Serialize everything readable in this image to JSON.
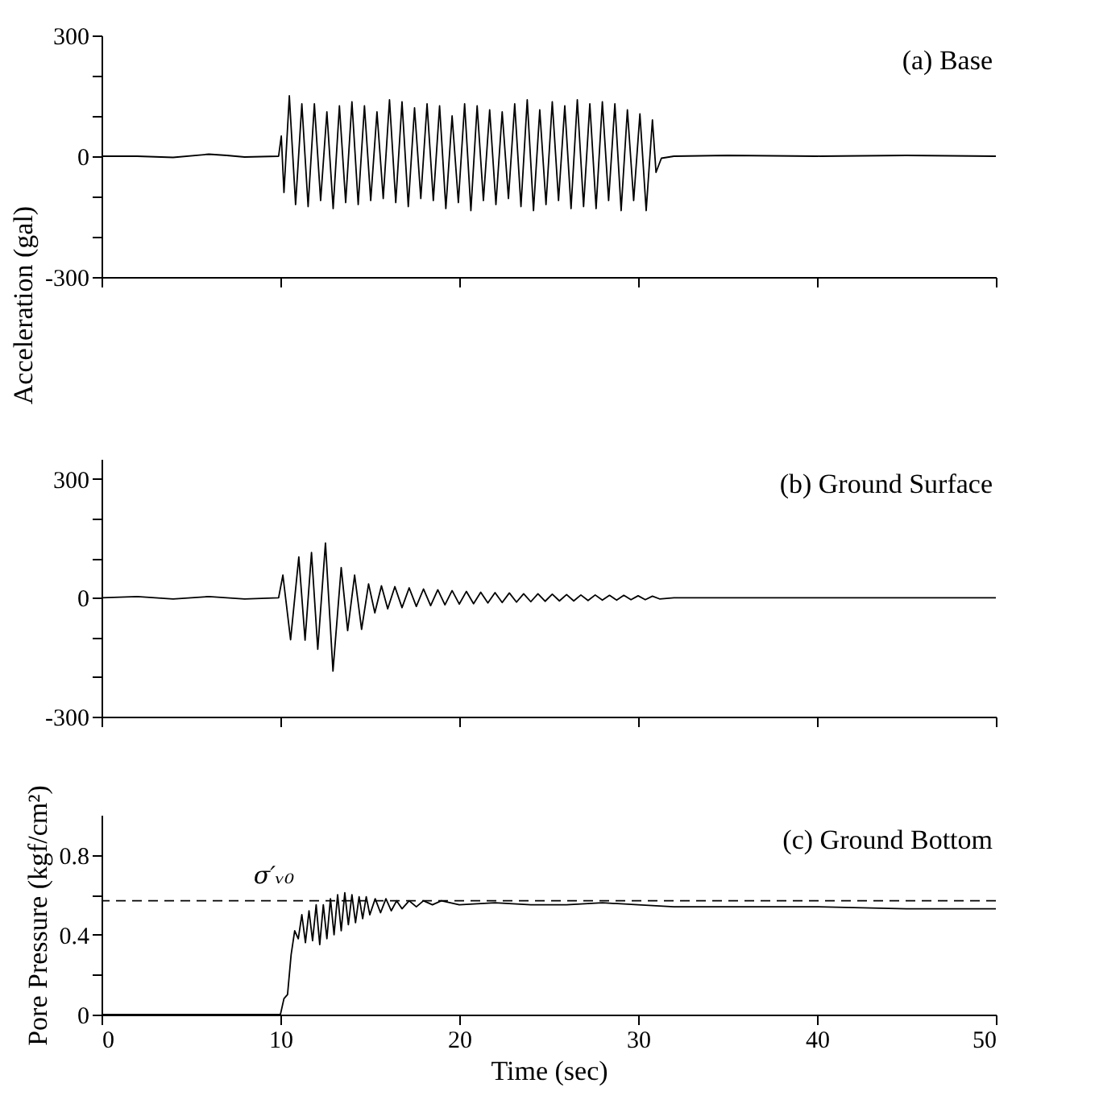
{
  "chart_data": [
    {
      "type": "line",
      "title": "(a) Base",
      "ylabel": "Acceleration (gal)",
      "xlim": [
        0,
        50
      ],
      "xticks": [
        0,
        10,
        20,
        30,
        40,
        50
      ],
      "ylim": [
        -300,
        300
      ],
      "yticks": [
        -300,
        {
          "value": -200,
          "label": null
        },
        {
          "value": -100,
          "label": null
        },
        0,
        {
          "value": 100,
          "label": null
        },
        {
          "value": 200,
          "label": null
        },
        300
      ],
      "tick_labels": "y",
      "grid": false,
      "series": [
        {
          "color": "#000000",
          "x": [
            0,
            2,
            4,
            6,
            7,
            8,
            9.9,
            10.05,
            10.2,
            10.5,
            10.85,
            11.2,
            11.55,
            11.9,
            12.25,
            12.6,
            12.95,
            13.3,
            13.65,
            14.0,
            14.35,
            14.7,
            15.05,
            15.4,
            15.75,
            16.1,
            16.45,
            16.8,
            17.15,
            17.5,
            17.85,
            18.2,
            18.55,
            18.9,
            19.25,
            19.6,
            19.95,
            20.3,
            20.65,
            21.0,
            21.35,
            21.7,
            22.05,
            22.4,
            22.75,
            23.1,
            23.45,
            23.8,
            24.15,
            24.5,
            24.85,
            25.2,
            25.55,
            25.9,
            26.25,
            26.6,
            26.95,
            27.3,
            27.65,
            28.0,
            28.35,
            28.7,
            29.05,
            29.4,
            29.75,
            30.1,
            30.45,
            30.8,
            31.0,
            31.3,
            32,
            35,
            40,
            45,
            50
          ],
          "values": [
            0,
            0,
            -3,
            5,
            2,
            -2,
            0,
            50,
            -90,
            150,
            -120,
            130,
            -125,
            130,
            -110,
            110,
            -130,
            125,
            -115,
            135,
            -120,
            125,
            -110,
            110,
            -105,
            140,
            -115,
            135,
            -125,
            120,
            -105,
            130,
            -110,
            125,
            -130,
            100,
            -115,
            130,
            -135,
            125,
            -110,
            115,
            -120,
            110,
            -105,
            130,
            -125,
            140,
            -135,
            115,
            -120,
            135,
            -110,
            125,
            -130,
            140,
            -125,
            130,
            -130,
            135,
            -110,
            130,
            -135,
            115,
            -110,
            105,
            -135,
            90,
            -40,
            -5,
            0,
            2,
            0,
            2,
            0
          ]
        }
      ]
    },
    {
      "type": "line",
      "title": "(b) Ground Surface",
      "xlim": [
        0,
        50
      ],
      "xticks": [
        0,
        10,
        20,
        30,
        40,
        50
      ],
      "ylim": [
        -300,
        350
      ],
      "yticks": [
        -300,
        {
          "value": -200,
          "label": null
        },
        {
          "value": -100,
          "label": null
        },
        0,
        {
          "value": 100,
          "label": null
        },
        {
          "value": 200,
          "label": null
        },
        300
      ],
      "tick_labels": "y",
      "grid": false,
      "series": [
        {
          "color": "#000000",
          "x": [
            0,
            2,
            4,
            6,
            8,
            9.9,
            10.14,
            10.57,
            11.03,
            11.38,
            11.74,
            12.09,
            12.52,
            12.94,
            13.4,
            13.76,
            14.15,
            14.54,
            14.93,
            15.28,
            15.65,
            16.0,
            16.4,
            16.8,
            17.2,
            17.6,
            18.0,
            18.4,
            18.8,
            19.2,
            19.6,
            20.0,
            20.4,
            20.8,
            21.2,
            21.6,
            22.0,
            22.4,
            22.8,
            23.2,
            23.6,
            24.0,
            24.4,
            24.8,
            25.2,
            25.6,
            26.0,
            26.4,
            26.8,
            27.2,
            27.6,
            28.0,
            28.4,
            28.8,
            29.2,
            29.6,
            30.0,
            30.4,
            30.8,
            31.2,
            32,
            35,
            40,
            45,
            50
          ],
          "values": [
            0,
            3,
            -3,
            3,
            -3,
            0,
            57,
            -106,
            103,
            -107,
            114,
            -130,
            138,
            -185,
            76,
            -83,
            57,
            -80,
            35,
            -38,
            30,
            -28,
            28,
            -25,
            25,
            -22,
            22,
            -20,
            20,
            -18,
            18,
            -16,
            16,
            -15,
            14,
            -13,
            13,
            -12,
            12,
            -11,
            10,
            -10,
            10,
            -9,
            9,
            -8,
            8,
            -8,
            7,
            -7,
            7,
            -6,
            6,
            -6,
            6,
            -5,
            5,
            -5,
            4,
            -3,
            0,
            0,
            0,
            0,
            0
          ]
        }
      ]
    },
    {
      "type": "line",
      "title": "(c) Ground Bottom",
      "xlabel": "Time (sec)",
      "ylabel": "Pore Pressure (kgf/cm²)",
      "xlim": [
        0,
        50
      ],
      "xticks": [
        0,
        10,
        20,
        30,
        40,
        50
      ],
      "ylim": [
        0,
        1.0
      ],
      "yticks": [
        0,
        {
          "value": 0.2,
          "label": null
        },
        0.4,
        {
          "value": 0.6,
          "label": null
        },
        0.8
      ],
      "grid": false,
      "ref_lines": [
        {
          "axis": "y",
          "value": 0.57,
          "label": "σ′ᵥ₀",
          "line_style": "dashed",
          "color": "#000000"
        }
      ],
      "series": [
        {
          "color": "#000000",
          "x": [
            0,
            5,
            9.9,
            10.0,
            10.2,
            10.4,
            10.6,
            10.8,
            11.0,
            11.2,
            11.4,
            11.6,
            11.8,
            12.0,
            12.2,
            12.4,
            12.6,
            12.8,
            13.0,
            13.2,
            13.4,
            13.6,
            13.8,
            14.0,
            14.2,
            14.4,
            14.6,
            14.8,
            15.0,
            15.3,
            15.6,
            15.9,
            16.2,
            16.5,
            16.8,
            17.2,
            17.6,
            18.0,
            18.5,
            19,
            20,
            22,
            24,
            26,
            28,
            30,
            32,
            35,
            40,
            45,
            50
          ],
          "values": [
            0,
            0,
            0,
            0,
            0.08,
            0.1,
            0.3,
            0.42,
            0.38,
            0.5,
            0.36,
            0.52,
            0.37,
            0.55,
            0.35,
            0.55,
            0.38,
            0.58,
            0.4,
            0.6,
            0.42,
            0.61,
            0.45,
            0.6,
            0.46,
            0.59,
            0.48,
            0.59,
            0.5,
            0.58,
            0.51,
            0.58,
            0.52,
            0.57,
            0.53,
            0.57,
            0.54,
            0.57,
            0.55,
            0.57,
            0.55,
            0.56,
            0.55,
            0.55,
            0.56,
            0.55,
            0.54,
            0.54,
            0.54,
            0.53,
            0.53
          ]
        }
      ]
    }
  ]
}
